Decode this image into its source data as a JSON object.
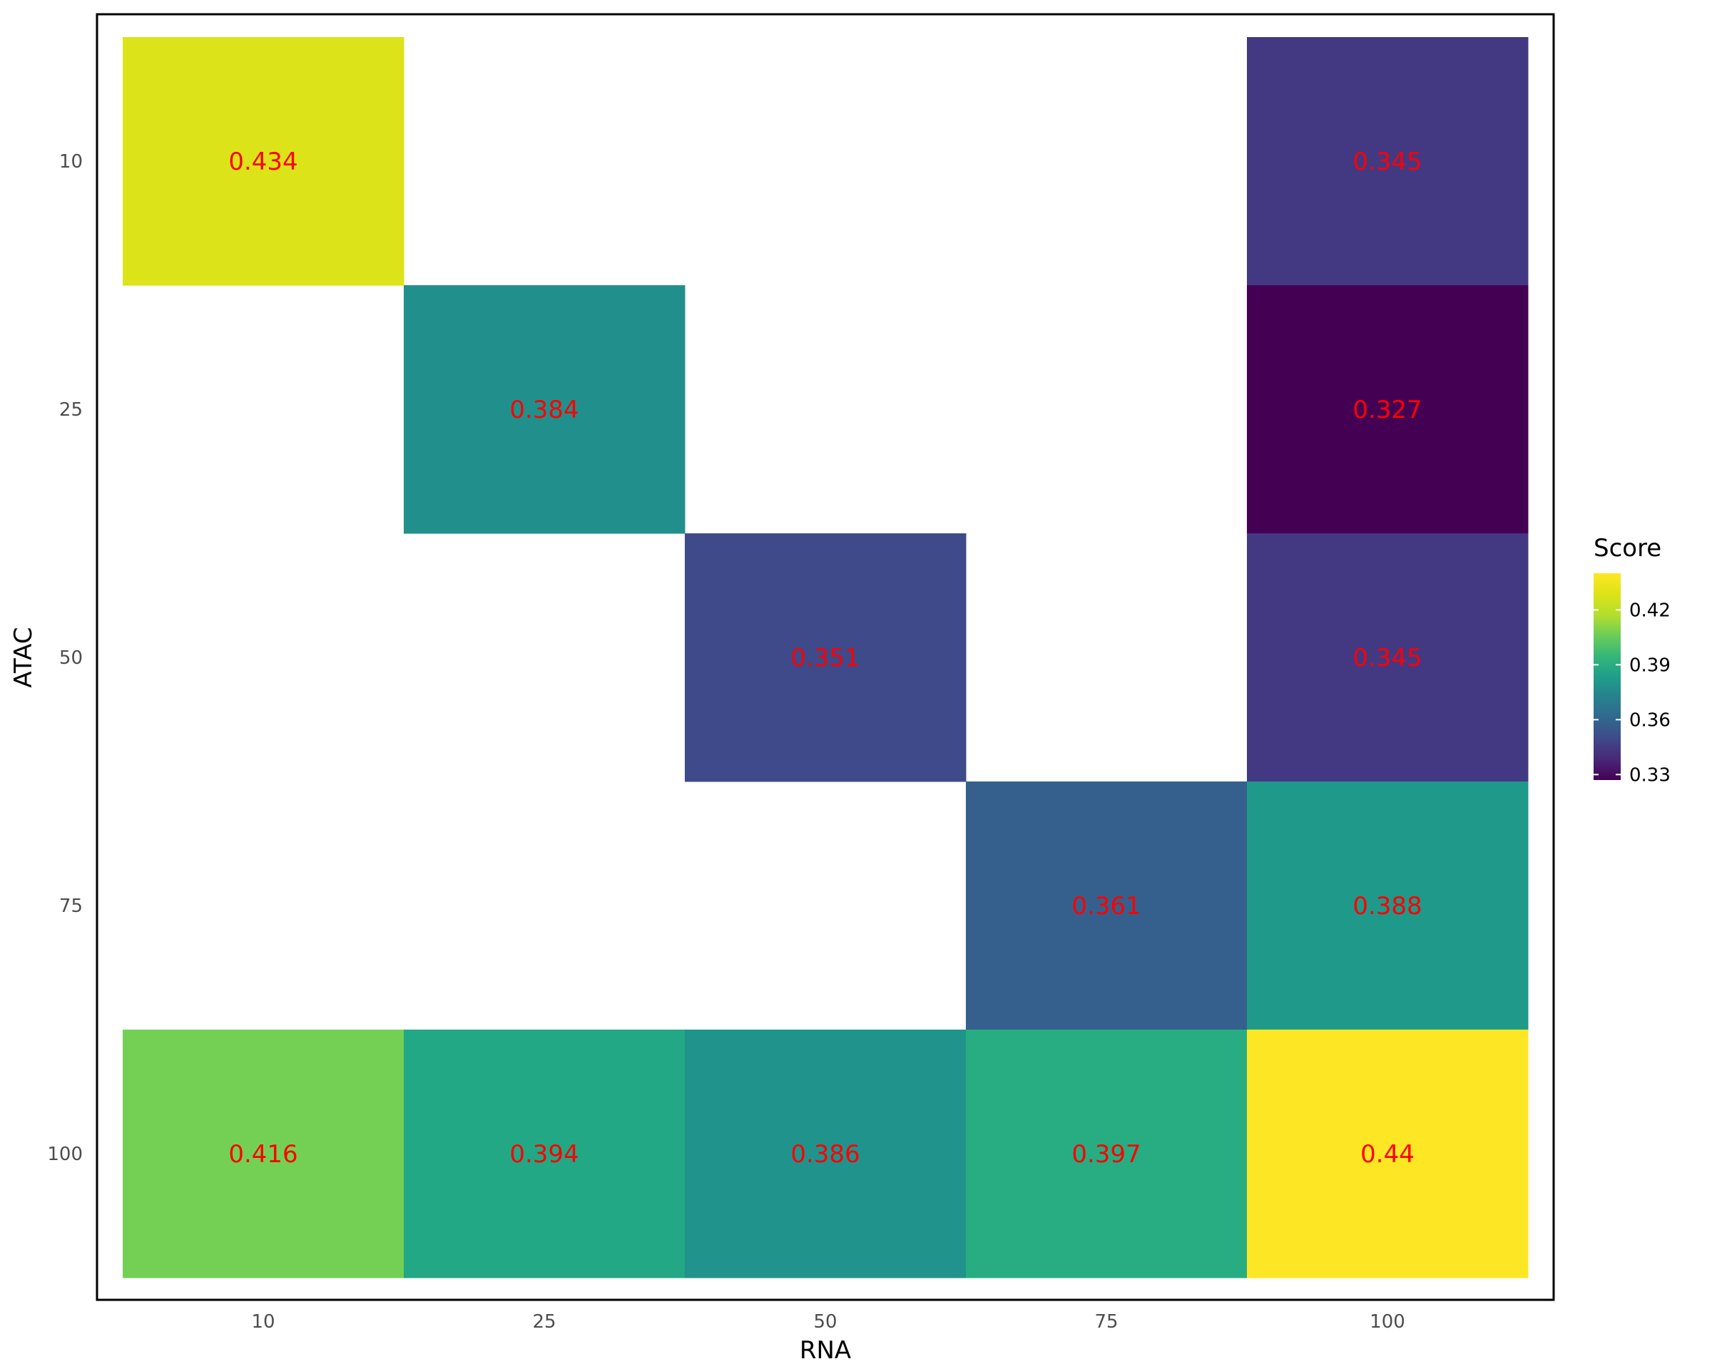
{
  "chart_data": {
    "type": "heatmap",
    "xlabel": "RNA",
    "ylabel": "ATAC",
    "x_categories": [
      "10",
      "25",
      "50",
      "75",
      "100"
    ],
    "y_categories": [
      "10",
      "25",
      "50",
      "75",
      "100"
    ],
    "cells": [
      {
        "x": "10",
        "y": "10",
        "value": 0.434,
        "label": "0.434",
        "color": "#DCE318"
      },
      {
        "x": "100",
        "y": "10",
        "value": 0.345,
        "label": "0.345",
        "color": "#433983"
      },
      {
        "x": "25",
        "y": "25",
        "value": 0.384,
        "label": "0.384",
        "color": "#21908C"
      },
      {
        "x": "100",
        "y": "25",
        "value": 0.327,
        "label": "0.327",
        "color": "#440154"
      },
      {
        "x": "50",
        "y": "50",
        "value": 0.351,
        "label": "0.351",
        "color": "#3E4A89"
      },
      {
        "x": "100",
        "y": "50",
        "value": 0.345,
        "label": "0.345",
        "color": "#433983"
      },
      {
        "x": "75",
        "y": "75",
        "value": 0.361,
        "label": "0.361",
        "color": "#35608D"
      },
      {
        "x": "100",
        "y": "75",
        "value": 0.388,
        "label": "0.388",
        "color": "#1F998A"
      },
      {
        "x": "10",
        "y": "100",
        "value": 0.416,
        "label": "0.416",
        "color": "#74D055"
      },
      {
        "x": "25",
        "y": "100",
        "value": 0.394,
        "label": "0.394",
        "color": "#22A884"
      },
      {
        "x": "50",
        "y": "100",
        "value": 0.386,
        "label": "0.386",
        "color": "#20938C"
      },
      {
        "x": "75",
        "y": "100",
        "value": 0.397,
        "label": "0.397",
        "color": "#27AD81"
      },
      {
        "x": "100",
        "y": "100",
        "value": 0.44,
        "label": "0.44",
        "color": "#FDE725"
      }
    ],
    "legend": {
      "title": "Score",
      "placement": "right",
      "range": [
        0.327,
        0.44
      ],
      "ticks": [
        {
          "value": 0.33,
          "label": "0.33"
        },
        {
          "value": 0.36,
          "label": "0.36"
        },
        {
          "value": 0.39,
          "label": "0.39"
        },
        {
          "value": 0.42,
          "label": "0.42"
        }
      ],
      "colormap": "viridis"
    },
    "label_color": "#FF0000",
    "grid": false
  }
}
